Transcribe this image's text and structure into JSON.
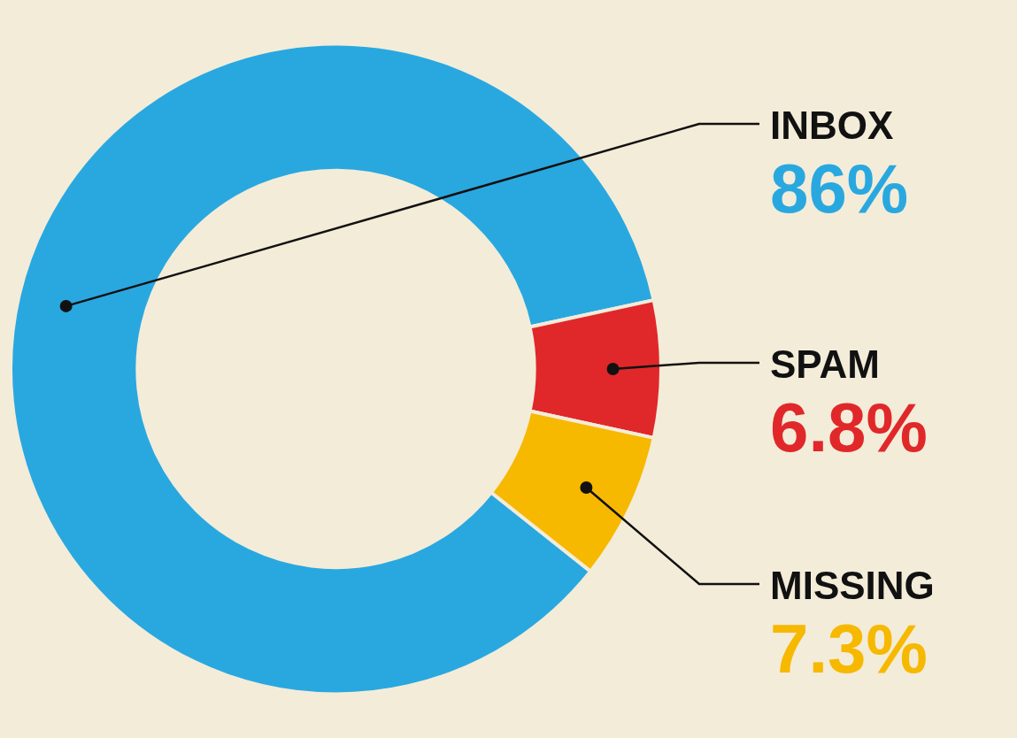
{
  "chart_data": {
    "type": "donut",
    "categories": [
      "INBOX",
      "SPAM",
      "MISSING"
    ],
    "values": [
      86,
      6.8,
      7.3
    ],
    "colors": [
      "#29a8e0",
      "#e0282a",
      "#f7b800"
    ],
    "value_labels": [
      "86%",
      "6.8%",
      "7.3%"
    ]
  }
}
